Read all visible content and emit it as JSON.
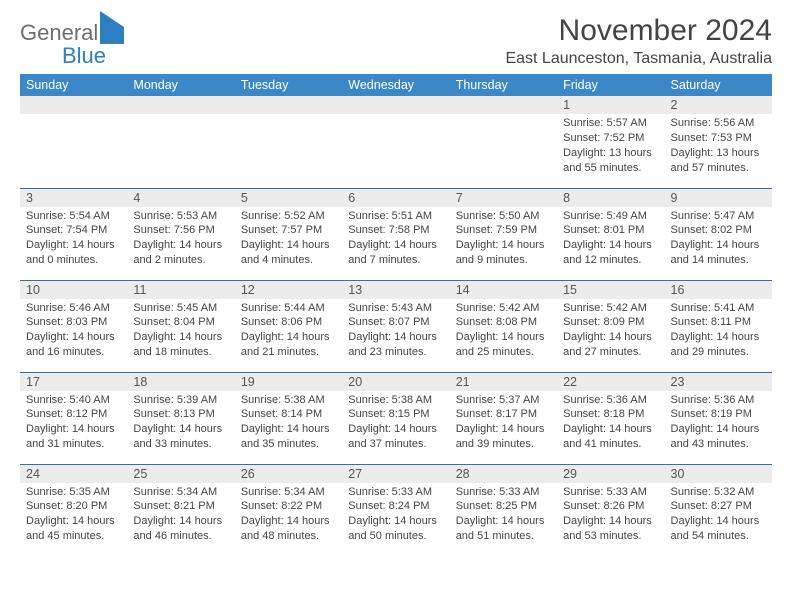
{
  "logo": {
    "brand1": "General",
    "brand2": "Blue"
  },
  "header": {
    "title": "November 2024",
    "location": "East Launceston, Tasmania, Australia"
  },
  "colors": {
    "headerBg": "#3b87c8",
    "headerText": "#ffffff",
    "rowBorder": "#3b6fa0",
    "dayStrip": "#ececec",
    "bodyText": "#444444",
    "logoGray": "#6e6e6e",
    "logoBlue": "#2f7ec2"
  },
  "dayNames": [
    "Sunday",
    "Monday",
    "Tuesday",
    "Wednesday",
    "Thursday",
    "Friday",
    "Saturday"
  ],
  "weeks": [
    [
      {
        "n": "",
        "sr": "",
        "ss": "",
        "dl": ""
      },
      {
        "n": "",
        "sr": "",
        "ss": "",
        "dl": ""
      },
      {
        "n": "",
        "sr": "",
        "ss": "",
        "dl": ""
      },
      {
        "n": "",
        "sr": "",
        "ss": "",
        "dl": ""
      },
      {
        "n": "",
        "sr": "",
        "ss": "",
        "dl": ""
      },
      {
        "n": "1",
        "sr": "Sunrise: 5:57 AM",
        "ss": "Sunset: 7:52 PM",
        "dl": "Daylight: 13 hours and 55 minutes."
      },
      {
        "n": "2",
        "sr": "Sunrise: 5:56 AM",
        "ss": "Sunset: 7:53 PM",
        "dl": "Daylight: 13 hours and 57 minutes."
      }
    ],
    [
      {
        "n": "3",
        "sr": "Sunrise: 5:54 AM",
        "ss": "Sunset: 7:54 PM",
        "dl": "Daylight: 14 hours and 0 minutes."
      },
      {
        "n": "4",
        "sr": "Sunrise: 5:53 AM",
        "ss": "Sunset: 7:56 PM",
        "dl": "Daylight: 14 hours and 2 minutes."
      },
      {
        "n": "5",
        "sr": "Sunrise: 5:52 AM",
        "ss": "Sunset: 7:57 PM",
        "dl": "Daylight: 14 hours and 4 minutes."
      },
      {
        "n": "6",
        "sr": "Sunrise: 5:51 AM",
        "ss": "Sunset: 7:58 PM",
        "dl": "Daylight: 14 hours and 7 minutes."
      },
      {
        "n": "7",
        "sr": "Sunrise: 5:50 AM",
        "ss": "Sunset: 7:59 PM",
        "dl": "Daylight: 14 hours and 9 minutes."
      },
      {
        "n": "8",
        "sr": "Sunrise: 5:49 AM",
        "ss": "Sunset: 8:01 PM",
        "dl": "Daylight: 14 hours and 12 minutes."
      },
      {
        "n": "9",
        "sr": "Sunrise: 5:47 AM",
        "ss": "Sunset: 8:02 PM",
        "dl": "Daylight: 14 hours and 14 minutes."
      }
    ],
    [
      {
        "n": "10",
        "sr": "Sunrise: 5:46 AM",
        "ss": "Sunset: 8:03 PM",
        "dl": "Daylight: 14 hours and 16 minutes."
      },
      {
        "n": "11",
        "sr": "Sunrise: 5:45 AM",
        "ss": "Sunset: 8:04 PM",
        "dl": "Daylight: 14 hours and 18 minutes."
      },
      {
        "n": "12",
        "sr": "Sunrise: 5:44 AM",
        "ss": "Sunset: 8:06 PM",
        "dl": "Daylight: 14 hours and 21 minutes."
      },
      {
        "n": "13",
        "sr": "Sunrise: 5:43 AM",
        "ss": "Sunset: 8:07 PM",
        "dl": "Daylight: 14 hours and 23 minutes."
      },
      {
        "n": "14",
        "sr": "Sunrise: 5:42 AM",
        "ss": "Sunset: 8:08 PM",
        "dl": "Daylight: 14 hours and 25 minutes."
      },
      {
        "n": "15",
        "sr": "Sunrise: 5:42 AM",
        "ss": "Sunset: 8:09 PM",
        "dl": "Daylight: 14 hours and 27 minutes."
      },
      {
        "n": "16",
        "sr": "Sunrise: 5:41 AM",
        "ss": "Sunset: 8:11 PM",
        "dl": "Daylight: 14 hours and 29 minutes."
      }
    ],
    [
      {
        "n": "17",
        "sr": "Sunrise: 5:40 AM",
        "ss": "Sunset: 8:12 PM",
        "dl": "Daylight: 14 hours and 31 minutes."
      },
      {
        "n": "18",
        "sr": "Sunrise: 5:39 AM",
        "ss": "Sunset: 8:13 PM",
        "dl": "Daylight: 14 hours and 33 minutes."
      },
      {
        "n": "19",
        "sr": "Sunrise: 5:38 AM",
        "ss": "Sunset: 8:14 PM",
        "dl": "Daylight: 14 hours and 35 minutes."
      },
      {
        "n": "20",
        "sr": "Sunrise: 5:38 AM",
        "ss": "Sunset: 8:15 PM",
        "dl": "Daylight: 14 hours and 37 minutes."
      },
      {
        "n": "21",
        "sr": "Sunrise: 5:37 AM",
        "ss": "Sunset: 8:17 PM",
        "dl": "Daylight: 14 hours and 39 minutes."
      },
      {
        "n": "22",
        "sr": "Sunrise: 5:36 AM",
        "ss": "Sunset: 8:18 PM",
        "dl": "Daylight: 14 hours and 41 minutes."
      },
      {
        "n": "23",
        "sr": "Sunrise: 5:36 AM",
        "ss": "Sunset: 8:19 PM",
        "dl": "Daylight: 14 hours and 43 minutes."
      }
    ],
    [
      {
        "n": "24",
        "sr": "Sunrise: 5:35 AM",
        "ss": "Sunset: 8:20 PM",
        "dl": "Daylight: 14 hours and 45 minutes."
      },
      {
        "n": "25",
        "sr": "Sunrise: 5:34 AM",
        "ss": "Sunset: 8:21 PM",
        "dl": "Daylight: 14 hours and 46 minutes."
      },
      {
        "n": "26",
        "sr": "Sunrise: 5:34 AM",
        "ss": "Sunset: 8:22 PM",
        "dl": "Daylight: 14 hours and 48 minutes."
      },
      {
        "n": "27",
        "sr": "Sunrise: 5:33 AM",
        "ss": "Sunset: 8:24 PM",
        "dl": "Daylight: 14 hours and 50 minutes."
      },
      {
        "n": "28",
        "sr": "Sunrise: 5:33 AM",
        "ss": "Sunset: 8:25 PM",
        "dl": "Daylight: 14 hours and 51 minutes."
      },
      {
        "n": "29",
        "sr": "Sunrise: 5:33 AM",
        "ss": "Sunset: 8:26 PM",
        "dl": "Daylight: 14 hours and 53 minutes."
      },
      {
        "n": "30",
        "sr": "Sunrise: 5:32 AM",
        "ss": "Sunset: 8:27 PM",
        "dl": "Daylight: 14 hours and 54 minutes."
      }
    ]
  ]
}
